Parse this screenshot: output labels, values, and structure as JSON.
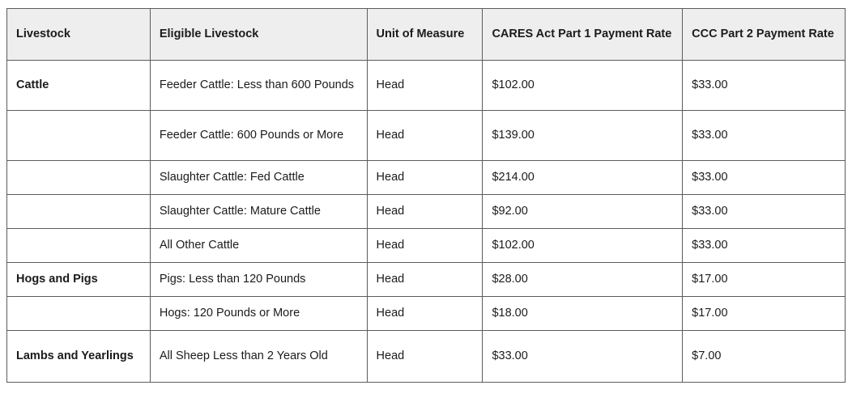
{
  "table": {
    "headers": [
      "Livestock",
      "Eligible Livestock",
      "Unit of Measure",
      "CARES Act Part 1 Payment Rate",
      "CCC Part 2 Payment Rate"
    ],
    "rows": [
      [
        "Cattle",
        "Feeder Cattle: Less than 600 Pounds",
        "Head",
        "$102.00",
        "$33.00"
      ],
      [
        "",
        "Feeder Cattle: 600 Pounds or More",
        "Head",
        "$139.00",
        "$33.00"
      ],
      [
        "",
        "Slaughter Cattle: Fed Cattle",
        "Head",
        "$214.00",
        "$33.00"
      ],
      [
        "",
        "Slaughter Cattle: Mature Cattle",
        "Head",
        "$92.00",
        "$33.00"
      ],
      [
        "",
        "All Other Cattle",
        "Head",
        "$102.00",
        "$33.00"
      ],
      [
        "Hogs and Pigs",
        "Pigs: Less than 120 Pounds",
        "Head",
        "$28.00",
        "$17.00"
      ],
      [
        "",
        "Hogs: 120 Pounds or More",
        "Head",
        "$18.00",
        "$17.00"
      ],
      [
        "Lambs and Yearlings",
        "All Sheep Less than 2 Years Old",
        "Head",
        "$33.00",
        "$7.00"
      ]
    ]
  }
}
